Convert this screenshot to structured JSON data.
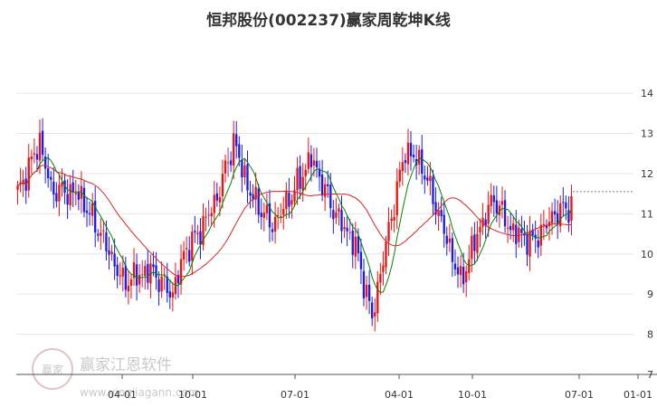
{
  "chart_data": {
    "type": "candlestick",
    "title": "恒邦股份(002237)赢家周乾坤K线",
    "xlabel": "",
    "ylabel": "",
    "ylim": [
      7,
      14.7
    ],
    "y_ticks": [
      7,
      8,
      9,
      10,
      11,
      12,
      13,
      14
    ],
    "x_ticks": [
      "04-01",
      "10-01",
      "07-01",
      "04-01",
      "10-01",
      "07-01",
      "01-01"
    ],
    "grid": "horizontal",
    "colors": {
      "up": "#ee1111",
      "down": "#1a1aee",
      "neutral": "#993399",
      "ma_fast": "#008800",
      "ma_slow": "#dd2222"
    },
    "last_price": 11.55,
    "segments": [
      {
        "week": 0,
        "price": 11.5
      },
      {
        "week": 8,
        "price": 12.8
      },
      {
        "week": 12,
        "price": 11.6
      },
      {
        "week": 22,
        "price": 11.5
      },
      {
        "week": 30,
        "price": 10.5
      },
      {
        "week": 38,
        "price": 9.3
      },
      {
        "week": 48,
        "price": 9.6
      },
      {
        "week": 56,
        "price": 9.0
      },
      {
        "week": 60,
        "price": 10.0
      },
      {
        "week": 66,
        "price": 10.6
      },
      {
        "week": 72,
        "price": 11.4
      },
      {
        "week": 78,
        "price": 12.8
      },
      {
        "week": 84,
        "price": 11.5
      },
      {
        "week": 92,
        "price": 10.7
      },
      {
        "week": 100,
        "price": 11.6
      },
      {
        "week": 106,
        "price": 12.4
      },
      {
        "week": 114,
        "price": 11.1
      },
      {
        "week": 122,
        "price": 10.2
      },
      {
        "week": 128,
        "price": 8.4
      },
      {
        "week": 134,
        "price": 10.6
      },
      {
        "week": 140,
        "price": 12.6
      },
      {
        "week": 146,
        "price": 12.2
      },
      {
        "week": 152,
        "price": 11.0
      },
      {
        "week": 160,
        "price": 9.3
      },
      {
        "week": 166,
        "price": 10.5
      },
      {
        "week": 172,
        "price": 11.4
      },
      {
        "week": 178,
        "price": 10.6
      },
      {
        "week": 186,
        "price": 10.3
      },
      {
        "week": 194,
        "price": 11.0
      },
      {
        "week": 200,
        "price": 11.2
      }
    ]
  },
  "watermark": {
    "brand": "赢家江恩软件",
    "url": "www.yingjiagann.com",
    "logo_text": "赢家"
  }
}
